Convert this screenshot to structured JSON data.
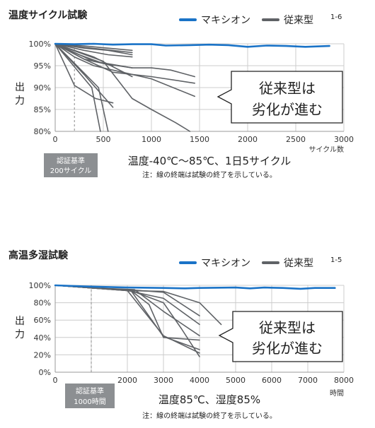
{
  "charts": [
    {
      "title": "温度サイクル試験",
      "legend": {
        "maxi": "マキシオン",
        "conv": "従来型",
        "conv_sup": "1-6"
      },
      "ylabel": "出力",
      "xunit": "サイクル数",
      "cert": [
        "認証基準",
        "200サイクル"
      ],
      "callout": [
        "従来型は",
        "劣化が進む"
      ],
      "condition": "温度-40℃〜85℃、1日5サイクル",
      "note": "注：線の終端は試験の終了を示している。"
    },
    {
      "title": "高温多湿試験",
      "legend": {
        "maxi": "マキシオン",
        "conv": "従来型",
        "conv_sup": "1-5"
      },
      "ylabel": "出力",
      "xunit": "時間",
      "cert": [
        "認証基準",
        "1000時間"
      ],
      "callout": [
        "従来型は",
        "劣化が進む"
      ],
      "condition": "温度85℃、湿度85%",
      "note": "注：線の終端は試験の終了を示している。"
    }
  ],
  "colors": {
    "maxi": "#1a73c7",
    "conv": "#5f6266",
    "grid": "#cccccc",
    "cert_box": "#8c8f92"
  },
  "chart_data": [
    {
      "type": "line",
      "xlim": [
        0,
        3000
      ],
      "ylim": [
        80,
        100
      ],
      "xticks": [
        0,
        500,
        1000,
        1500,
        2000,
        2500,
        3000
      ],
      "yticks": [
        80,
        85,
        90,
        95,
        100
      ],
      "ytick_labels": [
        "80%",
        "85%",
        "90%",
        "95%",
        "100%"
      ],
      "cert_x": 200,
      "series": [
        {
          "name": "マキシオン",
          "x": [
            0,
            200,
            400,
            600,
            800,
            1000,
            1150,
            1400,
            1600,
            1800,
            2000,
            2200,
            2400,
            2600,
            2850
          ],
          "y": [
            100,
            99.9,
            100,
            99.8,
            99.9,
            99.9,
            99.6,
            99.7,
            99.8,
            99.7,
            99.3,
            99.6,
            99.5,
            99.3,
            99.5
          ]
        },
        {
          "x": [
            0,
            450,
            550
          ],
          "y": [
            100,
            90,
            80
          ]
        },
        {
          "x": [
            0,
            380,
            470
          ],
          "y": [
            100,
            90,
            80
          ]
        },
        {
          "x": [
            0,
            200,
            420,
            600
          ],
          "y": [
            100,
            90.5,
            87.5,
            86.5
          ]
        },
        {
          "x": [
            0,
            300,
            600
          ],
          "y": [
            100,
            93,
            85.5
          ]
        },
        {
          "x": [
            0,
            500,
            800,
            1000,
            1250,
            1400
          ],
          "y": [
            100,
            96,
            87.5,
            85,
            82,
            80
          ]
        },
        {
          "x": [
            0,
            400,
            800,
            1000,
            1200,
            1450
          ],
          "y": [
            100,
            96,
            94.5,
            94.5,
            94,
            92.5
          ]
        },
        {
          "x": [
            0,
            300,
            600,
            1000,
            1450
          ],
          "y": [
            100,
            96.5,
            93.5,
            92.5,
            91
          ]
        },
        {
          "x": [
            0,
            200,
            400,
            700,
            1000,
            1450
          ],
          "y": [
            100,
            97,
            95,
            93.5,
            92,
            88
          ]
        },
        {
          "x": [
            0,
            400,
            800
          ],
          "y": [
            100,
            97,
            92.5
          ]
        },
        {
          "x": [
            0,
            300,
            600
          ],
          "y": [
            100,
            96.5,
            95
          ]
        },
        {
          "x": [
            0,
            250,
            500,
            800
          ],
          "y": [
            100,
            97.5,
            95.5,
            94.5
          ]
        },
        {
          "x": [
            0,
            300,
            550,
            800
          ],
          "y": [
            100,
            98.5,
            97.5,
            97
          ]
        },
        {
          "x": [
            0,
            300,
            550,
            800
          ],
          "y": [
            100,
            99,
            98.5,
            97.5
          ]
        },
        {
          "x": [
            0,
            300,
            550,
            800
          ],
          "y": [
            100,
            99.2,
            98.6,
            98
          ]
        },
        {
          "x": [
            0,
            300,
            550,
            800
          ],
          "y": [
            100,
            99.5,
            99,
            98.5
          ]
        }
      ]
    },
    {
      "type": "line",
      "xlim": [
        0,
        8000
      ],
      "ylim": [
        0,
        100
      ],
      "xticks": [
        0,
        1000,
        2000,
        3000,
        4000,
        5000,
        6000,
        7000,
        8000
      ],
      "xtick_labels": [
        "0",
        "",
        "2000",
        "3000",
        "4000",
        "5000",
        "6000",
        "7000",
        "8000"
      ],
      "yticks": [
        0,
        20,
        40,
        60,
        80,
        100
      ],
      "ytick_labels": [
        "0%",
        "20%",
        "40%",
        "60%",
        "80%",
        "100%"
      ],
      "cert_x": 1000,
      "series": [
        {
          "name": "マキシオン",
          "x": [
            0,
            1000,
            2000,
            3000,
            3600,
            4000,
            5000,
            5400,
            5800,
            6300,
            6800,
            7200,
            7750
          ],
          "y": [
            100,
            98.5,
            97.5,
            97,
            96.5,
            97,
            97.5,
            96.5,
            97.5,
            97,
            96,
            97,
            97
          ]
        },
        {
          "x": [
            0,
            1000,
            2000,
            3000,
            4000
          ],
          "y": [
            100,
            97,
            95,
            92,
            65
          ]
        },
        {
          "x": [
            0,
            1000,
            2100,
            2600,
            3000,
            4000
          ],
          "y": [
            100,
            97,
            94,
            78,
            40,
            37
          ]
        },
        {
          "x": [
            0,
            1000,
            2100,
            3000,
            3500,
            4000
          ],
          "y": [
            100,
            97,
            94,
            80,
            50,
            18
          ]
        },
        {
          "x": [
            0,
            1000,
            2100,
            3000,
            4000
          ],
          "y": [
            100,
            97,
            94,
            41,
            26
          ]
        },
        {
          "x": [
            0,
            1000,
            2000,
            3000,
            4000
          ],
          "y": [
            100,
            97,
            94,
            42,
            22
          ]
        },
        {
          "x": [
            0,
            1000,
            2200,
            3000,
            4000
          ],
          "y": [
            100,
            97,
            95,
            70,
            42
          ]
        },
        {
          "x": [
            0,
            1000,
            2000,
            3000,
            4000
          ],
          "y": [
            100,
            97,
            94,
            85,
            55
          ]
        },
        {
          "x": [
            0,
            1000,
            2000,
            3000,
            4000,
            4600
          ],
          "y": [
            100,
            97,
            94,
            93,
            80,
            55
          ]
        }
      ]
    }
  ]
}
